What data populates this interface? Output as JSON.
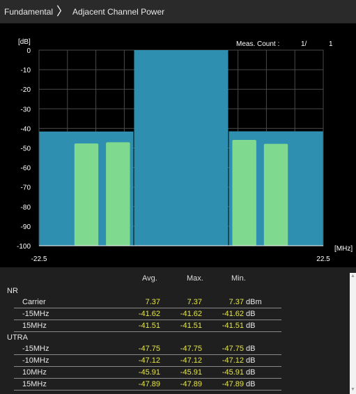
{
  "breadcrumb": {
    "parent": "Fundamental",
    "current": "Adjacent Channel Power"
  },
  "meas_count": {
    "label": "Meas. Count :",
    "current": "1/",
    "total": "1"
  },
  "chart_data": {
    "type": "bar",
    "ylabel": "[dB]",
    "xlabel": "[MHz]",
    "xlim": [
      -22.5,
      22.5
    ],
    "ylim": [
      -100,
      0
    ],
    "x_tick_labels": [
      "-22.5",
      "22.5"
    ],
    "y_ticks": [
      0,
      -10,
      -20,
      -30,
      -40,
      -50,
      -60,
      -70,
      -80,
      -90,
      -100
    ],
    "grid": true,
    "nr_bands": [
      {
        "name": "NR -15MHz",
        "x0": -22.5,
        "x1": -7.5,
        "value": -41.62
      },
      {
        "name": "NR Carrier",
        "x0": -7.5,
        "x1": 7.5,
        "value": 0
      },
      {
        "name": "NR 15MHz",
        "x0": 7.5,
        "x1": 22.5,
        "value": -41.51
      }
    ],
    "utra_bands": [
      {
        "name": "UTRA -15MHz",
        "x0": -16.9,
        "x1": -13.1,
        "value": -47.75
      },
      {
        "name": "UTRA -10MHz",
        "x0": -11.9,
        "x1": -8.1,
        "value": -47.12
      },
      {
        "name": "UTRA 10MHz",
        "x0": 8.1,
        "x1": 11.9,
        "value": -45.91
      },
      {
        "name": "UTRA 15MHz",
        "x0": 13.1,
        "x1": 16.9,
        "value": -47.89
      }
    ],
    "colors": {
      "nr": "#2e8fb0",
      "utra": "#7fd98e",
      "grid": "#4a4a4a",
      "axis": "#ffffff"
    }
  },
  "table": {
    "headers": {
      "avg": "Avg.",
      "max": "Max.",
      "min": "Min."
    },
    "groups": [
      {
        "label": "NR",
        "rows": [
          {
            "label": "Carrier",
            "avg": "7.37",
            "max": "7.37",
            "min": "7.37",
            "unit": "dBm"
          },
          {
            "label": "-15MHz",
            "avg": "-41.62",
            "max": "-41.62",
            "min": "-41.62",
            "unit": "dB"
          },
          {
            "label": "15MHz",
            "avg": "-41.51",
            "max": "-41.51",
            "min": "-41.51",
            "unit": "dB"
          }
        ]
      },
      {
        "label": "UTRA",
        "rows": [
          {
            "label": "-15MHz",
            "avg": "-47.75",
            "max": "-47.75",
            "min": "-47.75",
            "unit": "dB"
          },
          {
            "label": "-10MHz",
            "avg": "-47.12",
            "max": "-47.12",
            "min": "-47.12",
            "unit": "dB"
          },
          {
            "label": "10MHz",
            "avg": "-45.91",
            "max": "-45.91",
            "min": "-45.91",
            "unit": "dB"
          },
          {
            "label": "15MHz",
            "avg": "-47.89",
            "max": "-47.89",
            "min": "-47.89",
            "unit": "dB"
          }
        ]
      }
    ]
  }
}
